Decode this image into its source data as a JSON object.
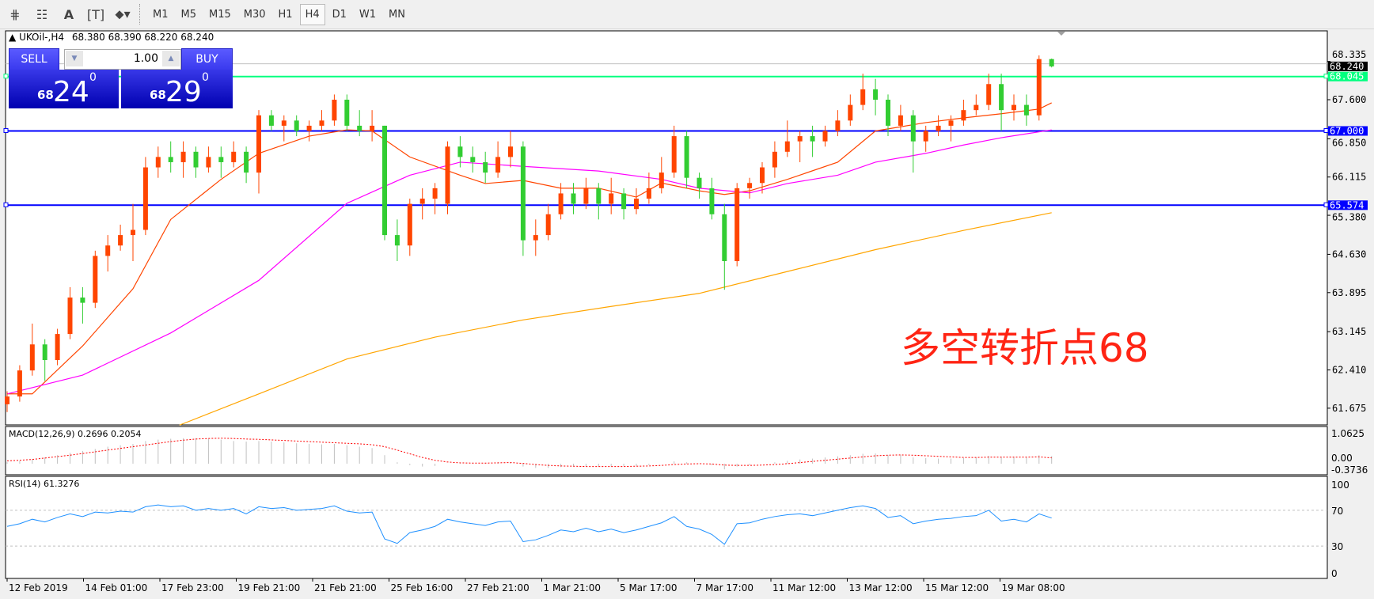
{
  "toolbar": {
    "icons": [
      "elliott-wave-icon",
      "fibonacci-icon",
      "text-icon",
      "text-label-icon",
      "arrows-icon"
    ],
    "timeframes": [
      "M1",
      "M5",
      "M15",
      "M30",
      "H1",
      "H4",
      "D1",
      "W1",
      "MN"
    ],
    "active_timeframe": "H4"
  },
  "header": {
    "symbol": "UKOil-,H4",
    "ohlc": "68.380 68.390 68.220 68.240"
  },
  "trade_panel": {
    "sell_label": "SELL",
    "buy_label": "BUY",
    "lot": "1.00",
    "sell_price": {
      "prefix": "68",
      "big": "24",
      "sup": "0"
    },
    "buy_price": {
      "prefix": "68",
      "big": "29",
      "sup": "0"
    }
  },
  "annotation": "多空转折点68",
  "colors": {
    "bull": "#ff4500",
    "bear": "#32cd32",
    "ma_fast": "#ff4500",
    "ma_mid": "#ff00ff",
    "ma_slow": "#ffa500",
    "level_line": "#0000ff",
    "green_line": "#00ff7f",
    "rsi": "#1e90ff",
    "macd_signal": "#ff0000",
    "macd_hist": "#c0c0c0",
    "text_red": "#ff2414"
  },
  "chart_data": [
    {
      "type": "candlestick",
      "title": "UKOil-,H4",
      "ylim": [
        61.4,
        68.5
      ],
      "price_ticks": [
        "68.335",
        "67.600",
        "66.850",
        "66.115",
        "65.380",
        "64.630",
        "63.895",
        "63.145",
        "62.410",
        "61.675"
      ],
      "time_labels": [
        "12 Feb 2019",
        "14 Feb 01:00",
        "17 Feb 23:00",
        "19 Feb 21:00",
        "21 Feb 21:00",
        "25 Feb 16:00",
        "27 Feb 21:00",
        "1 Mar 21:00",
        "5 Mar 17:00",
        "7 Mar 17:00",
        "11 Mar 12:00",
        "13 Mar 12:00",
        "15 Mar 12:00",
        "19 Mar 08:00"
      ],
      "ohlc": [
        [
          61.75,
          62.0,
          61.6,
          61.9
        ],
        [
          61.9,
          62.5,
          61.8,
          62.4
        ],
        [
          62.4,
          63.3,
          62.3,
          62.9
        ],
        [
          62.9,
          63.0,
          62.2,
          62.6
        ],
        [
          62.6,
          63.2,
          62.5,
          63.1
        ],
        [
          63.1,
          64.0,
          63.0,
          63.8
        ],
        [
          63.8,
          64.0,
          63.3,
          63.7
        ],
        [
          63.7,
          64.7,
          63.6,
          64.6
        ],
        [
          64.6,
          65.0,
          64.3,
          64.8
        ],
        [
          64.8,
          65.2,
          64.7,
          65.0
        ],
        [
          65.0,
          65.6,
          64.5,
          65.1
        ],
        [
          65.1,
          66.5,
          65.0,
          66.3
        ],
        [
          66.3,
          66.7,
          66.1,
          66.5
        ],
        [
          66.5,
          66.8,
          66.2,
          66.4
        ],
        [
          66.4,
          66.8,
          66.1,
          66.6
        ],
        [
          66.6,
          66.7,
          66.1,
          66.3
        ],
        [
          66.3,
          66.7,
          66.2,
          66.5
        ],
        [
          66.5,
          66.7,
          66.1,
          66.4
        ],
        [
          66.4,
          66.8,
          66.3,
          66.6
        ],
        [
          66.6,
          66.7,
          66.0,
          66.2
        ],
        [
          66.2,
          67.4,
          65.8,
          67.3
        ],
        [
          67.3,
          67.4,
          67.0,
          67.1
        ],
        [
          67.1,
          67.3,
          66.8,
          67.2
        ],
        [
          67.2,
          67.3,
          66.9,
          67.0
        ],
        [
          67.0,
          67.2,
          66.8,
          67.1
        ],
        [
          67.1,
          67.4,
          67.0,
          67.2
        ],
        [
          67.2,
          67.7,
          67.1,
          67.6
        ],
        [
          67.6,
          67.7,
          67.0,
          67.1
        ],
        [
          67.1,
          67.4,
          66.9,
          67.0
        ],
        [
          67.0,
          67.4,
          66.8,
          67.1
        ],
        [
          67.1,
          67.1,
          64.9,
          65.0
        ],
        [
          65.0,
          65.3,
          64.5,
          64.8
        ],
        [
          64.8,
          65.7,
          64.6,
          65.6
        ],
        [
          65.6,
          65.9,
          65.3,
          65.7
        ],
        [
          65.7,
          66.0,
          65.4,
          65.9
        ],
        [
          65.6,
          66.8,
          65.4,
          66.7
        ],
        [
          66.7,
          66.9,
          66.3,
          66.5
        ],
        [
          66.5,
          66.7,
          66.2,
          66.4
        ],
        [
          66.4,
          66.6,
          66.0,
          66.2
        ],
        [
          66.2,
          66.8,
          66.1,
          66.5
        ],
        [
          66.5,
          67.0,
          66.3,
          66.7
        ],
        [
          66.7,
          66.8,
          64.6,
          64.9
        ],
        [
          64.9,
          65.3,
          64.6,
          65.0
        ],
        [
          65.0,
          65.6,
          64.9,
          65.4
        ],
        [
          65.4,
          66.0,
          65.3,
          65.8
        ],
        [
          65.8,
          66.0,
          65.4,
          65.6
        ],
        [
          65.6,
          66.1,
          65.5,
          65.9
        ],
        [
          65.9,
          66.0,
          65.3,
          65.6
        ],
        [
          65.6,
          66.1,
          65.4,
          65.8
        ],
        [
          65.8,
          65.9,
          65.3,
          65.5
        ],
        [
          65.5,
          65.9,
          65.4,
          65.7
        ],
        [
          65.7,
          66.2,
          65.6,
          65.9
        ],
        [
          65.9,
          66.5,
          65.8,
          66.2
        ],
        [
          66.2,
          67.1,
          66.1,
          66.9
        ],
        [
          66.9,
          67.0,
          65.9,
          66.1
        ],
        [
          66.1,
          66.2,
          65.7,
          65.9
        ],
        [
          65.9,
          66.1,
          65.3,
          65.4
        ],
        [
          65.4,
          65.6,
          63.95,
          64.5
        ],
        [
          64.5,
          66.0,
          64.4,
          65.9
        ],
        [
          65.9,
          66.1,
          65.7,
          66.0
        ],
        [
          66.0,
          66.4,
          65.8,
          66.3
        ],
        [
          66.3,
          66.8,
          66.1,
          66.6
        ],
        [
          66.6,
          67.2,
          66.5,
          66.8
        ],
        [
          66.8,
          67.0,
          66.4,
          66.9
        ],
        [
          66.9,
          67.1,
          66.5,
          66.8
        ],
        [
          66.8,
          67.1,
          66.7,
          67.0
        ],
        [
          67.0,
          67.4,
          66.9,
          67.2
        ],
        [
          67.2,
          67.7,
          67.1,
          67.5
        ],
        [
          67.5,
          68.1,
          67.4,
          67.8
        ],
        [
          67.8,
          68.0,
          67.3,
          67.6
        ],
        [
          67.6,
          67.7,
          66.9,
          67.1
        ],
        [
          67.1,
          67.5,
          67.0,
          67.3
        ],
        [
          67.3,
          67.4,
          66.2,
          66.8
        ],
        [
          66.8,
          67.1,
          66.6,
          67.0
        ],
        [
          67.0,
          67.3,
          66.9,
          67.1
        ],
        [
          67.1,
          67.3,
          66.8,
          67.2
        ],
        [
          67.2,
          67.6,
          67.1,
          67.4
        ],
        [
          67.4,
          67.7,
          67.3,
          67.5
        ],
        [
          67.5,
          68.1,
          67.4,
          67.9
        ],
        [
          67.9,
          68.1,
          67.0,
          67.4
        ],
        [
          67.4,
          67.7,
          67.2,
          67.5
        ],
        [
          67.5,
          67.7,
          67.1,
          67.3
        ],
        [
          67.3,
          68.45,
          67.2,
          68.38
        ],
        [
          68.38,
          68.39,
          68.22,
          68.24
        ]
      ],
      "moving_averages": [
        {
          "color_key": "ma_fast",
          "points": [
            [
              0,
              61.95
            ],
            [
              2,
              61.95
            ],
            [
              6,
              62.87
            ],
            [
              10,
              63.97
            ],
            [
              13,
              65.3
            ],
            [
              17,
              66.07
            ],
            [
              20,
              66.57
            ],
            [
              24,
              66.9
            ],
            [
              27,
              67.02
            ],
            [
              29,
              67.0
            ],
            [
              32,
              66.5
            ],
            [
              36,
              66.15
            ],
            [
              38,
              65.99
            ],
            [
              41,
              66.05
            ],
            [
              44,
              65.9
            ],
            [
              47,
              65.9
            ],
            [
              50,
              65.73
            ],
            [
              52,
              66.0
            ],
            [
              55,
              65.85
            ],
            [
              57,
              65.78
            ],
            [
              59,
              65.85
            ],
            [
              62,
              66.07
            ],
            [
              66,
              66.4
            ],
            [
              69,
              67.0
            ],
            [
              73,
              67.16
            ],
            [
              76,
              67.25
            ],
            [
              79,
              67.33
            ],
            [
              82,
              67.42
            ],
            [
              83,
              67.54
            ]
          ]
        },
        {
          "color_key": "ma_mid",
          "points": [
            [
              0,
              61.95
            ],
            [
              6,
              62.31
            ],
            [
              13,
              63.12
            ],
            [
              20,
              64.13
            ],
            [
              27,
              65.61
            ],
            [
              32,
              66.15
            ],
            [
              36,
              66.4
            ],
            [
              41,
              66.32
            ],
            [
              47,
              66.23
            ],
            [
              52,
              66.07
            ],
            [
              55,
              65.9
            ],
            [
              59,
              65.81
            ],
            [
              62,
              65.99
            ],
            [
              66,
              66.15
            ],
            [
              69,
              66.4
            ],
            [
              73,
              66.57
            ],
            [
              76,
              66.73
            ],
            [
              79,
              66.87
            ],
            [
              83,
              67.02
            ]
          ]
        },
        {
          "color_key": "ma_slow",
          "points": [
            [
              13.7,
              61.35
            ],
            [
              20,
              61.95
            ],
            [
              27,
              62.62
            ],
            [
              34,
              63.04
            ],
            [
              41,
              63.37
            ],
            [
              48,
              63.63
            ],
            [
              55,
              63.88
            ],
            [
              62,
              64.3
            ],
            [
              69,
              64.72
            ],
            [
              76,
              65.09
            ],
            [
              83,
              65.43
            ]
          ]
        }
      ],
      "horizontal_lines": [
        {
          "price": 68.045,
          "label": "68.045",
          "color_key": "green_line"
        },
        {
          "price": 67.0,
          "label": "67.000",
          "color_key": "level_line"
        },
        {
          "price": 65.574,
          "label": "65.574",
          "color_key": "level_line"
        }
      ],
      "ask_line": 68.29,
      "last_price": "68.240"
    },
    {
      "type": "bar",
      "title": "MACD(12,26,9) 0.2696 0.2054",
      "ticks": [
        "1.0625",
        "0.00",
        "-0.3736"
      ],
      "ylim": [
        -0.3736,
        1.0625
      ],
      "histogram": [
        0.05,
        0.1,
        0.15,
        0.22,
        0.3,
        0.38,
        0.45,
        0.52,
        0.6,
        0.65,
        0.7,
        0.8,
        0.85,
        0.88,
        0.9,
        0.9,
        0.88,
        0.85,
        0.8,
        0.78,
        0.8,
        0.78,
        0.75,
        0.72,
        0.7,
        0.68,
        0.7,
        0.65,
        0.6,
        0.55,
        0.3,
        0.05,
        -0.05,
        -0.1,
        -0.08,
        0.0,
        0.02,
        0.03,
        0.02,
        0.05,
        0.06,
        -0.1,
        -0.15,
        -0.15,
        -0.12,
        -0.1,
        -0.1,
        -0.1,
        -0.1,
        -0.08,
        -0.08,
        -0.05,
        0.0,
        0.08,
        0.05,
        0.0,
        -0.05,
        -0.2,
        -0.1,
        -0.05,
        0.0,
        0.05,
        0.1,
        0.15,
        0.18,
        0.22,
        0.26,
        0.3,
        0.35,
        0.36,
        0.3,
        0.3,
        0.22,
        0.2,
        0.18,
        0.18,
        0.2,
        0.22,
        0.28,
        0.25,
        0.24,
        0.22,
        0.3,
        0.2696
      ],
      "signal": [
        0.1,
        0.12,
        0.15,
        0.2,
        0.25,
        0.3,
        0.36,
        0.42,
        0.48,
        0.54,
        0.6,
        0.66,
        0.72,
        0.78,
        0.83,
        0.87,
        0.89,
        0.9,
        0.89,
        0.87,
        0.86,
        0.84,
        0.82,
        0.8,
        0.78,
        0.76,
        0.74,
        0.72,
        0.7,
        0.67,
        0.6,
        0.48,
        0.35,
        0.22,
        0.12,
        0.06,
        0.03,
        0.02,
        0.02,
        0.03,
        0.04,
        0.01,
        -0.03,
        -0.06,
        -0.08,
        -0.09,
        -0.1,
        -0.1,
        -0.1,
        -0.1,
        -0.09,
        -0.08,
        -0.06,
        -0.03,
        -0.01,
        0.0,
        -0.01,
        -0.05,
        -0.06,
        -0.06,
        -0.05,
        -0.03,
        0.0,
        0.04,
        0.08,
        0.12,
        0.16,
        0.2,
        0.24,
        0.28,
        0.3,
        0.31,
        0.3,
        0.28,
        0.26,
        0.24,
        0.22,
        0.22,
        0.23,
        0.23,
        0.23,
        0.23,
        0.24,
        0.2054
      ]
    },
    {
      "type": "line",
      "title": "RSI(14) 61.3276",
      "ticks": [
        "100",
        "70",
        "30",
        "0"
      ],
      "ylim": [
        0,
        100
      ],
      "levels": [
        70,
        30
      ],
      "values": [
        52,
        55,
        60,
        57,
        62,
        66,
        63,
        68,
        67,
        69,
        68,
        74,
        76,
        74,
        75,
        70,
        72,
        70,
        72,
        66,
        74,
        72,
        73,
        70,
        71,
        72,
        75,
        69,
        67,
        68,
        38,
        33,
        45,
        48,
        52,
        60,
        57,
        55,
        53,
        57,
        58,
        35,
        37,
        42,
        48,
        46,
        50,
        46,
        49,
        45,
        48,
        52,
        56,
        63,
        52,
        49,
        43,
        32,
        55,
        56,
        60,
        63,
        65,
        66,
        64,
        67,
        70,
        73,
        75,
        72,
        62,
        64,
        55,
        58,
        60,
        61,
        63,
        64,
        70,
        58,
        60,
        57,
        66,
        61.33
      ]
    }
  ]
}
